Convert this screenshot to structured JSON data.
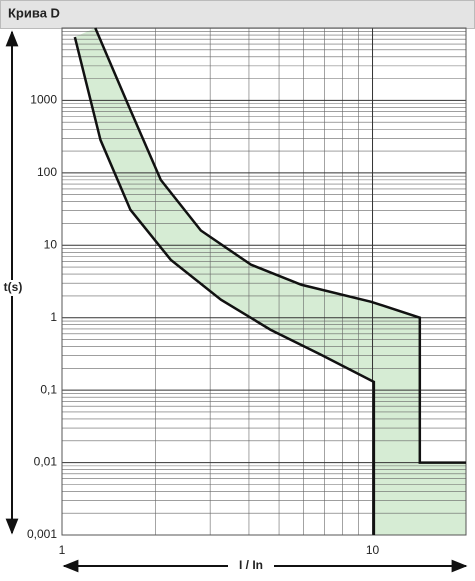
{
  "chart_data": {
    "type": "line",
    "title": "Крива D",
    "xlabel": "I / In",
    "ylabel": "t(s)",
    "xscale": "log",
    "yscale": "log",
    "grid": true,
    "xlim": [
      1,
      20
    ],
    "ylim": [
      0.001,
      10000
    ],
    "xticks": [
      1,
      10
    ],
    "yticks": [
      {
        "value": 0.001,
        "label": "0,001"
      },
      {
        "value": 0.01,
        "label": "0,01"
      },
      {
        "value": 0.1,
        "label": "0,1"
      },
      1,
      10,
      100,
      1000
    ],
    "fill_color": "#d6ecd4",
    "series": [
      {
        "color": "#111111",
        "x": [
          1.28,
          1.66,
          2.08,
          2.8,
          4.06,
          5.9,
          9.9,
          14.2,
          14.2,
          20
        ],
        "values": [
          10000,
          740,
          80,
          16,
          5.4,
          2.85,
          1.66,
          1,
          0.01,
          0.01
        ]
      },
      {
        "color": "#111111",
        "x": [
          1.1,
          1.33,
          1.66,
          2.24,
          3.25,
          4.7,
          6.8,
          10.1,
          10.1
        ],
        "values": [
          7500,
          285,
          31,
          6.3,
          1.77,
          0.68,
          0.31,
          0.13,
          0.001
        ]
      }
    ]
  }
}
